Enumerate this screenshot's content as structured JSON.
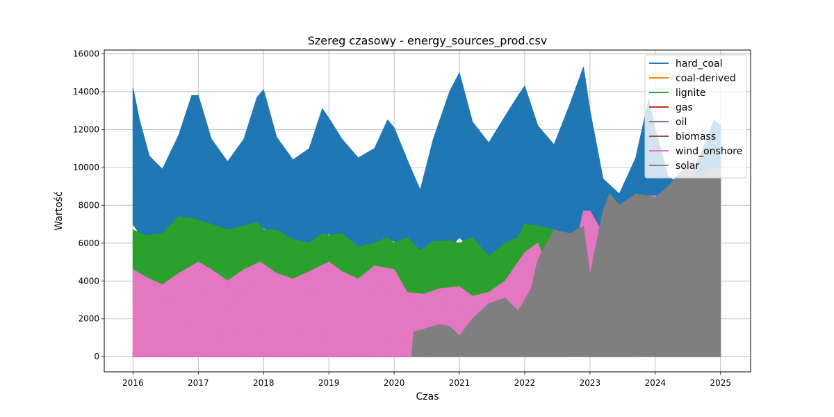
{
  "chart_data": {
    "type": "line",
    "title": "Szereg czasowy - energy_sources_prod.csv",
    "xlabel": "Czas",
    "ylabel": "Wartość",
    "xlim": [
      2015.56,
      2025.46
    ],
    "ylim": [
      -800,
      16200
    ],
    "x_ticks": [
      2016,
      2017,
      2018,
      2019,
      2020,
      2021,
      2022,
      2023,
      2024,
      2025
    ],
    "x_tick_labels": [
      "2016",
      "2017",
      "2018",
      "2019",
      "2020",
      "2021",
      "2022",
      "2023",
      "2024",
      "2025"
    ],
    "y_ticks": [
      0,
      2000,
      4000,
      6000,
      8000,
      10000,
      12000,
      14000,
      16000
    ],
    "y_tick_labels": [
      "0",
      "2000",
      "4000",
      "6000",
      "8000",
      "10000",
      "12000",
      "14000",
      "16000"
    ],
    "grid": true,
    "legend_position": "top-right",
    "series": [
      {
        "name": "hard_coal",
        "color": "#1f77b4",
        "kind": "band",
        "x": [
          2016.0,
          2016.1,
          2016.25,
          2016.45,
          2016.7,
          2016.9,
          2017.0,
          2017.2,
          2017.45,
          2017.7,
          2017.9,
          2018.0,
          2018.2,
          2018.45,
          2018.7,
          2018.9,
          2019.0,
          2019.2,
          2019.45,
          2019.7,
          2019.9,
          2020.0,
          2020.2,
          2020.4,
          2020.6,
          2020.85,
          2021.0,
          2021.2,
          2021.45,
          2021.7,
          2021.9,
          2022.0,
          2022.2,
          2022.45,
          2022.7,
          2022.9,
          2023.0,
          2023.2,
          2023.45,
          2023.7,
          2023.9,
          2024.0,
          2024.2,
          2024.45,
          2024.7,
          2024.9,
          2025.0
        ],
        "min": [
          7000,
          6500,
          6300,
          6400,
          6600,
          6800,
          6700,
          6200,
          6100,
          6400,
          6700,
          6800,
          6300,
          5800,
          5600,
          6200,
          6500,
          5800,
          5500,
          5600,
          6200,
          6100,
          5200,
          4600,
          4400,
          5700,
          6300,
          5600,
          5300,
          5800,
          5800,
          5900,
          5300,
          4800,
          4600,
          5300,
          5600,
          4500,
          3600,
          3000,
          3200,
          3300,
          2600,
          2200,
          2100,
          2500,
          2200
        ],
        "max": [
          14200,
          12500,
          10600,
          9900,
          11700,
          13800,
          13800,
          11500,
          10300,
          11500,
          13700,
          14100,
          11600,
          10400,
          11000,
          13100,
          12600,
          11500,
          10500,
          11000,
          12500,
          12100,
          10400,
          8800,
          11500,
          14000,
          15000,
          12400,
          11300,
          12700,
          13800,
          14300,
          12200,
          11200,
          13400,
          15300,
          13000,
          9400,
          8600,
          10500,
          13600,
          12000,
          9500,
          9000,
          10700,
          12500,
          12200
        ]
      },
      {
        "name": "coal-derived",
        "color": "#ff7f0e",
        "kind": "band",
        "x": [
          2016.0,
          2018.0,
          2020.25,
          2020.27
        ],
        "min": [
          0,
          0,
          0,
          0
        ],
        "max": [
          120,
          100,
          100,
          0
        ]
      },
      {
        "name": "lignite",
        "color": "#2ca02c",
        "kind": "band",
        "x": [
          2016.0,
          2016.2,
          2016.45,
          2016.7,
          2016.9,
          2017.0,
          2017.2,
          2017.45,
          2017.7,
          2017.9,
          2018.0,
          2018.2,
          2018.45,
          2018.7,
          2018.9,
          2019.0,
          2019.2,
          2019.45,
          2019.7,
          2019.9,
          2020.0,
          2020.2,
          2020.4,
          2020.6,
          2020.85,
          2021.0,
          2021.2,
          2021.45,
          2021.7,
          2021.9,
          2022.0,
          2022.2,
          2022.45,
          2022.7,
          2022.9,
          2023.0
        ],
        "min": [
          3100,
          3200,
          3000,
          3000,
          3600,
          3800,
          3200,
          3000,
          3200,
          3400,
          3600,
          3000,
          2600,
          3000,
          3300,
          3200,
          2700,
          2600,
          2700,
          3000,
          2900,
          2300,
          2100,
          2200,
          2500,
          2800,
          2400,
          2000,
          2500,
          2700,
          3000,
          3200,
          2900,
          2700,
          3100,
          3300
        ],
        "max": [
          6700,
          6400,
          6500,
          7400,
          7300,
          7200,
          7000,
          6700,
          6900,
          7100,
          6700,
          6700,
          6200,
          6000,
          6500,
          6400,
          6500,
          5800,
          6000,
          6300,
          6000,
          6300,
          5600,
          6100,
          6100,
          6000,
          6300,
          5300,
          6000,
          6300,
          7000,
          6900,
          6700,
          6500,
          6900,
          6000
        ]
      },
      {
        "name": "gas",
        "color": "#d62728",
        "kind": "band",
        "x": [
          2016.0,
          2016.1,
          2017.0,
          2017.8,
          2017.95,
          2018.0,
          2019.0,
          2020.0,
          2020.27
        ],
        "min": [
          0,
          0,
          0,
          0,
          0,
          0,
          0,
          0,
          0
        ],
        "max": [
          300,
          800,
          500,
          900,
          1500,
          500,
          300,
          350,
          300
        ]
      },
      {
        "name": "oil",
        "color": "#9467bd",
        "kind": "band",
        "x": [
          2016.0,
          2020.27
        ],
        "min": [
          0,
          0
        ],
        "max": [
          40,
          40
        ]
      },
      {
        "name": "biomass",
        "color": "#8c564b",
        "kind": "band",
        "x": [
          2016.0,
          2018.0,
          2019.5,
          2020.27
        ],
        "min": [
          0,
          0,
          0,
          0
        ],
        "max": [
          200,
          250,
          300,
          350
        ]
      },
      {
        "name": "wind_onshore",
        "color": "#e377c2",
        "kind": "band",
        "x": [
          2016.0,
          2016.2,
          2016.45,
          2016.7,
          2017.0,
          2017.2,
          2017.45,
          2017.7,
          2017.95,
          2018.2,
          2018.45,
          2018.7,
          2019.0,
          2019.2,
          2019.45,
          2019.7,
          2020.0,
          2020.2,
          2020.45,
          2020.7,
          2021.0,
          2021.2,
          2021.45,
          2021.7,
          2022.0,
          2022.2,
          2022.45,
          2022.7,
          2022.9,
          2023.0,
          2023.2,
          2023.45,
          2023.7,
          2023.9,
          2024.0,
          2024.15,
          2024.3,
          2024.5,
          2024.7,
          2024.9,
          2025.0
        ],
        "min": [
          0,
          0,
          0,
          0,
          0,
          0,
          0,
          0,
          0,
          0,
          0,
          0,
          0,
          0,
          0,
          0,
          0,
          0,
          0,
          0,
          0,
          0,
          0,
          0,
          0,
          0,
          0,
          0,
          800,
          0,
          0,
          0,
          0,
          1400,
          0,
          0,
          0,
          0,
          0,
          0,
          0
        ],
        "max": [
          4600,
          4200,
          3800,
          4400,
          5000,
          4600,
          4000,
          4600,
          5000,
          4400,
          4100,
          4500,
          5000,
          4500,
          4100,
          4800,
          4600,
          3400,
          3300,
          3600,
          3700,
          3200,
          3400,
          4000,
          5500,
          6000,
          3900,
          4600,
          7700,
          7700,
          6500,
          5300,
          6900,
          8500,
          8500,
          8400,
          7800,
          8000,
          8800,
          9400,
          9200
        ]
      },
      {
        "name": "solar",
        "color": "#7f7f7f",
        "kind": "band",
        "x": [
          2020.27,
          2020.3,
          2020.5,
          2020.7,
          2020.85,
          2021.0,
          2021.2,
          2021.45,
          2021.7,
          2021.9,
          2022.1,
          2022.2,
          2022.45,
          2022.7,
          2022.9,
          2023.0,
          2023.2,
          2023.3,
          2023.45,
          2023.7,
          2023.9,
          2024.0,
          2024.2,
          2024.45,
          2024.7,
          2024.9,
          2025.0
        ],
        "min": [
          0,
          0,
          0,
          0,
          0,
          0,
          0,
          0,
          0,
          0,
          0,
          0,
          0,
          0,
          0,
          0,
          0,
          0,
          0,
          0,
          0,
          0,
          0,
          0,
          0,
          0,
          0
        ],
        "max": [
          0,
          1300,
          1500,
          1700,
          1600,
          1100,
          2000,
          2800,
          3100,
          2400,
          3600,
          5100,
          6700,
          6500,
          6900,
          4300,
          7700,
          8600,
          8000,
          8600,
          8500,
          8400,
          9000,
          10000,
          9600,
          10000,
          9900
        ]
      }
    ]
  }
}
